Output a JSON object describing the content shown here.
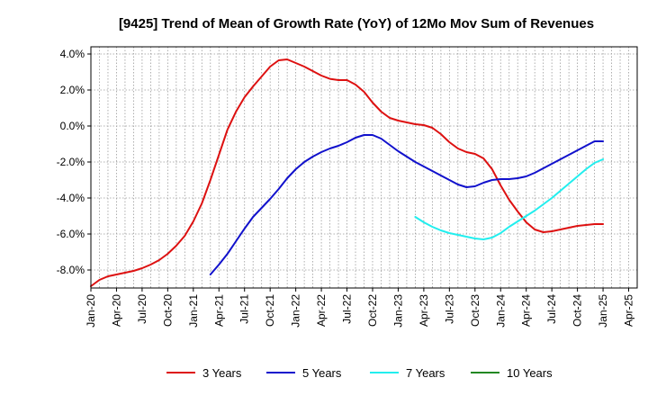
{
  "chart_data": {
    "type": "line",
    "title": "[9425]  Trend of Mean of Growth Rate (YoY) of 12Mo Mov Sum of Revenues",
    "xlabel": "",
    "ylabel": "",
    "ylim": [
      -9.0,
      4.4
    ],
    "y_ticks": [
      4.0,
      2.0,
      0.0,
      -2.0,
      -4.0,
      -6.0,
      -8.0
    ],
    "y_tick_labels": [
      "4.0%",
      "2.0%",
      "0.0%",
      "-2.0%",
      "-4.0%",
      "-6.0%",
      "-8.0%"
    ],
    "x_tick_labels": [
      "Jan-20",
      "Apr-20",
      "Jul-20",
      "Oct-20",
      "Jan-21",
      "Apr-21",
      "Jul-21",
      "Oct-21",
      "Jan-22",
      "Apr-22",
      "Jul-22",
      "Oct-22",
      "Jan-23",
      "Apr-23",
      "Jul-23",
      "Oct-23",
      "Jan-24",
      "Apr-24",
      "Jul-24",
      "Oct-24",
      "Jan-25",
      "Apr-25"
    ],
    "x_range_months": [
      0,
      64
    ],
    "grid": true,
    "legend_position": "bottom",
    "series": [
      {
        "name": "3 Years",
        "color": "#dd1111",
        "x": [
          0,
          1,
          2,
          3,
          4,
          5,
          6,
          7,
          8,
          9,
          10,
          11,
          12,
          13,
          14,
          15,
          16,
          17,
          18,
          19,
          20,
          21,
          22,
          23,
          24,
          25,
          26,
          27,
          28,
          29,
          30,
          31,
          32,
          33,
          34,
          35,
          36,
          37,
          38,
          39,
          40,
          41,
          42,
          43,
          44,
          45,
          46,
          47,
          48,
          49,
          50,
          51,
          52,
          53,
          54,
          55,
          56,
          57,
          58,
          59,
          60
        ],
        "values": [
          -8.9,
          -8.55,
          -8.35,
          -8.25,
          -8.15,
          -8.05,
          -7.9,
          -7.7,
          -7.45,
          -7.1,
          -6.65,
          -6.1,
          -5.3,
          -4.3,
          -3.0,
          -1.6,
          -0.2,
          0.8,
          1.6,
          2.2,
          2.75,
          3.3,
          3.65,
          3.7,
          3.5,
          3.3,
          3.05,
          2.8,
          2.62,
          2.55,
          2.55,
          2.3,
          1.9,
          1.3,
          0.8,
          0.45,
          0.3,
          0.2,
          0.1,
          0.05,
          -0.1,
          -0.45,
          -0.9,
          -1.25,
          -1.45,
          -1.55,
          -1.8,
          -2.4,
          -3.3,
          -4.1,
          -4.75,
          -5.35,
          -5.75,
          -5.9,
          -5.85,
          -5.75,
          -5.65,
          -5.55,
          -5.5,
          -5.45,
          -5.45
        ]
      },
      {
        "name": "5 Years",
        "color": "#1111cc",
        "x": [
          14,
          15,
          16,
          17,
          18,
          19,
          20,
          21,
          22,
          23,
          24,
          25,
          26,
          27,
          28,
          29,
          30,
          31,
          32,
          33,
          34,
          35,
          36,
          37,
          38,
          39,
          40,
          41,
          42,
          43,
          44,
          45,
          46,
          47,
          48,
          49,
          50,
          51,
          52,
          53,
          54,
          55,
          56,
          57,
          58,
          59,
          60
        ],
        "values": [
          -8.25,
          -7.7,
          -7.1,
          -6.4,
          -5.7,
          -5.05,
          -4.55,
          -4.05,
          -3.5,
          -2.9,
          -2.4,
          -2.0,
          -1.7,
          -1.45,
          -1.25,
          -1.1,
          -0.9,
          -0.65,
          -0.5,
          -0.5,
          -0.7,
          -1.05,
          -1.4,
          -1.7,
          -2.0,
          -2.25,
          -2.5,
          -2.75,
          -3.0,
          -3.25,
          -3.4,
          -3.35,
          -3.15,
          -3.0,
          -2.95,
          -2.95,
          -2.9,
          -2.8,
          -2.6,
          -2.35,
          -2.1,
          -1.85,
          -1.6,
          -1.35,
          -1.1,
          -0.85,
          -0.85
        ]
      },
      {
        "name": "7 Years",
        "color": "#22eeee",
        "x": [
          38,
          39,
          40,
          41,
          42,
          43,
          44,
          45,
          46,
          47,
          48,
          49,
          50,
          51,
          52,
          53,
          54,
          55,
          56,
          57,
          58,
          59,
          60
        ],
        "values": [
          -5.05,
          -5.35,
          -5.6,
          -5.8,
          -5.95,
          -6.05,
          -6.15,
          -6.25,
          -6.3,
          -6.2,
          -5.95,
          -5.6,
          -5.3,
          -5.0,
          -4.7,
          -4.35,
          -4.0,
          -3.6,
          -3.2,
          -2.8,
          -2.4,
          -2.05,
          -1.85
        ]
      },
      {
        "name": "10 Years",
        "color": "#228822",
        "x": [],
        "values": []
      }
    ]
  }
}
